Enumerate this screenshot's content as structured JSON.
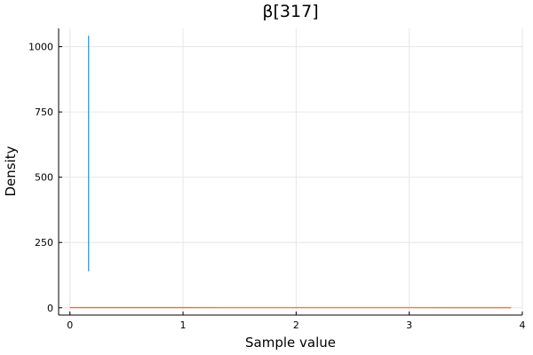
{
  "chart_data": {
    "type": "line",
    "title": "β[317]",
    "xlabel": "Sample value",
    "ylabel": "Density",
    "xlim": [
      -0.1,
      4.0
    ],
    "ylim": [
      -28,
      1070
    ],
    "xticks": [
      0,
      1,
      2,
      3,
      4
    ],
    "xtick_labels": [
      "0",
      "1",
      "2",
      "3",
      "4"
    ],
    "yticks": [
      0,
      250,
      500,
      750,
      1000
    ],
    "ytick_labels": [
      "0",
      "250",
      "500",
      "750",
      "1000"
    ],
    "grid": true,
    "legend": false,
    "series": [
      {
        "color": "#009AFA",
        "x": [
          0.165,
          0.165
        ],
        "y": [
          140,
          1042
        ]
      },
      {
        "color": "#E26F46",
        "x": [
          0.0,
          0.5,
          1.0,
          1.5,
          2.0,
          2.5,
          3.0,
          3.5,
          3.9
        ],
        "y": [
          0.6,
          0.5,
          0.4,
          0.3,
          0.3,
          0.2,
          0.2,
          0.1,
          0.1
        ]
      }
    ]
  }
}
